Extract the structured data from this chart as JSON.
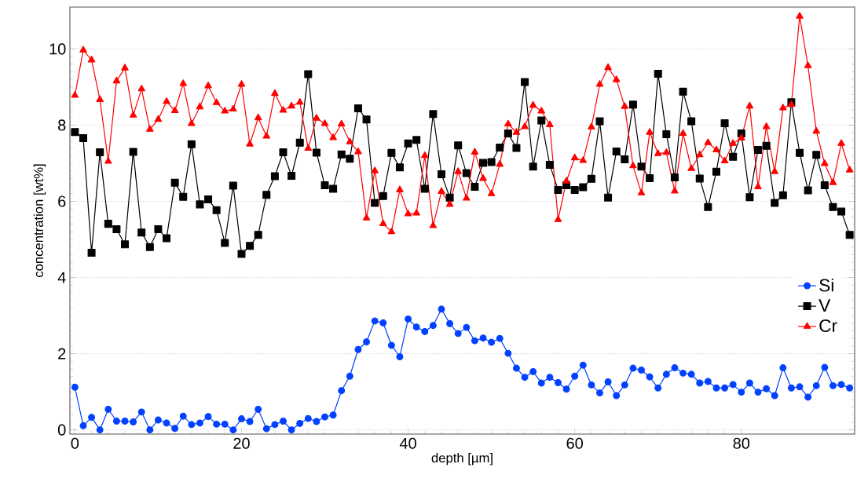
{
  "chart_data": {
    "type": "line",
    "xlabel": "depth [µm]",
    "ylabel": "concentration [wt%]",
    "x": [
      0,
      1,
      2,
      3,
      4,
      5,
      6,
      7,
      8,
      9,
      10,
      11,
      12,
      13,
      14,
      15,
      16,
      17,
      18,
      19,
      20,
      21,
      22,
      23,
      24,
      25,
      26,
      27,
      28,
      29,
      30,
      31,
      32,
      33,
      34,
      35,
      36,
      37,
      38,
      39,
      40,
      41,
      42,
      43,
      44,
      45,
      46,
      47,
      48,
      49,
      50,
      51,
      52,
      53,
      54,
      55,
      56,
      57,
      58,
      59,
      60,
      61,
      62,
      63,
      64,
      65,
      66,
      67,
      68,
      69,
      70,
      71,
      72,
      73,
      74,
      75,
      76,
      77,
      78,
      79,
      80,
      81,
      82,
      83,
      84,
      85,
      86,
      87,
      88,
      89,
      90,
      91,
      92,
      93
    ],
    "series": [
      {
        "name": "Si",
        "color": "#0040ff",
        "marker": "circle",
        "values": [
          1.12,
          0.11,
          0.33,
          0,
          0.54,
          0.23,
          0.23,
          0.21,
          0.47,
          0,
          0.26,
          0.18,
          0.04,
          0.36,
          0.14,
          0.18,
          0.35,
          0.15,
          0.15,
          0,
          0.29,
          0.22,
          0.54,
          0.03,
          0.14,
          0.23,
          0,
          0.17,
          0.3,
          0.22,
          0.34,
          0.39,
          1.03,
          1.41,
          2.11,
          2.31,
          2.86,
          2.81,
          2.22,
          1.92,
          2.91,
          2.7,
          2.58,
          2.74,
          3.17,
          2.79,
          2.53,
          2.69,
          2.34,
          2.41,
          2.3,
          2.4,
          2.01,
          1.62,
          1.38,
          1.53,
          1.23,
          1.38,
          1.24,
          1.07,
          1.41,
          1.7,
          1.18,
          0.97,
          1.26,
          0.9,
          1.18,
          1.62,
          1.57,
          1.39,
          1.1,
          1.46,
          1.63,
          1.49,
          1.46,
          1.23,
          1.27,
          1.1,
          1.1,
          1.19,
          0.99,
          1.23,
          0.99,
          1.08,
          0.9,
          1.63,
          1.1,
          1.13,
          0.86,
          1.16,
          1.64,
          1.16,
          1.19,
          1.1
        ]
      },
      {
        "name": "V",
        "color": "#000000",
        "marker": "square",
        "values": [
          7.82,
          7.66,
          4.65,
          7.29,
          5.41,
          5.27,
          4.87,
          7.3,
          5.18,
          4.8,
          5.27,
          5.03,
          6.49,
          6.12,
          7.5,
          5.92,
          6.05,
          5.77,
          4.91,
          6.41,
          4.62,
          4.83,
          5.12,
          6.17,
          6.66,
          7.29,
          6.67,
          7.54,
          9.34,
          7.28,
          6.42,
          6.33,
          7.23,
          7.12,
          8.44,
          8.15,
          5.96,
          6.14,
          7.27,
          6.89,
          7.52,
          7.61,
          6.33,
          8.29,
          6.71,
          6.1,
          7.47,
          6.74,
          6.38,
          7.01,
          7.03,
          7.41,
          7.78,
          7.4,
          9.13,
          6.91,
          8.12,
          6.96,
          6.3,
          6.42,
          6.3,
          6.37,
          6.59,
          8.1,
          6.1,
          7.31,
          7.1,
          8.54,
          6.91,
          6.61,
          9.35,
          7.76,
          6.63,
          8.88,
          8.1,
          6.6,
          5.85,
          6.78,
          8.05,
          7.17,
          7.78,
          6.11,
          7.35,
          7.46,
          5.96,
          6.16,
          8.6,
          7.27,
          6.29,
          7.22,
          6.42,
          5.85,
          5.73,
          5.12
        ]
      },
      {
        "name": "Cr",
        "color": "#ff0000",
        "marker": "triangle",
        "values": [
          8.78,
          9.97,
          9.71,
          8.67,
          7.05,
          9.16,
          9.5,
          8.26,
          8.95,
          7.89,
          8.15,
          8.62,
          8.38,
          9.09,
          8.04,
          8.48,
          9.03,
          8.59,
          8.37,
          8.42,
          9.07,
          7.5,
          8.19,
          7.71,
          8.83,
          8.39,
          8.5,
          8.6,
          7.39,
          8.18,
          8.04,
          7.67,
          8.03,
          7.56,
          7.3,
          5.56,
          6.8,
          5.41,
          5.2,
          6.3,
          5.67,
          5.69,
          7.2,
          5.36,
          6.26,
          5.92,
          6.78,
          6.08,
          7.29,
          6.6,
          6.2,
          6.97,
          8.03,
          7.81,
          7.96,
          8.52,
          8.37,
          8.01,
          5.52,
          6.53,
          7.14,
          7.07,
          7.95,
          9.07,
          9.51,
          9.19,
          8.49,
          6.93,
          6.22,
          7.81,
          7.25,
          7.28,
          6.27,
          7.78,
          6.86,
          7.22,
          7.54,
          7.35,
          7.06,
          7.52,
          7.66,
          8.5,
          6.38,
          7.96,
          6.78,
          8.45,
          8.54,
          10.86,
          9.56,
          7.84,
          6.99,
          6.49,
          7.52,
          6.82
        ]
      }
    ],
    "xlim": [
      -0.6,
      93.6
    ],
    "ylim": [
      -0.11,
      11.1
    ],
    "xticks": [
      0,
      20,
      40,
      60,
      80
    ],
    "yticks": [
      0,
      2,
      4,
      6,
      8,
      10
    ],
    "grid": "y",
    "legend": "right",
    "line_style": "solid"
  }
}
